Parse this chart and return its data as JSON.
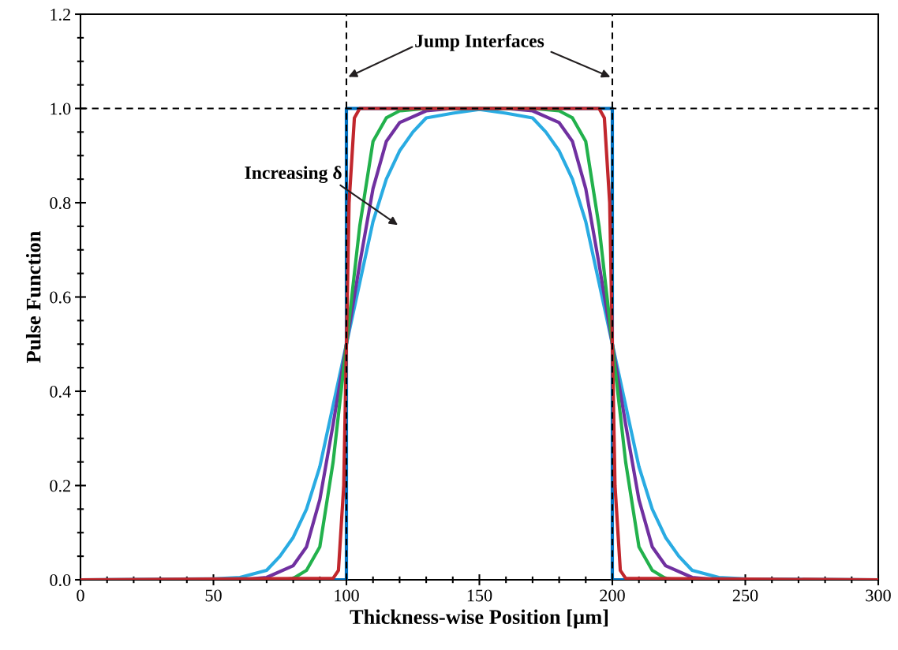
{
  "chart_data": {
    "type": "line",
    "xlabel": "Thickness-wise Position [µm]",
    "ylabel": "Pulse Function",
    "xlim": [
      0,
      300
    ],
    "xticks": [
      0,
      50,
      100,
      150,
      200,
      250,
      300
    ],
    "ylim": [
      0,
      1.2
    ],
    "yticks": [
      {
        "value": 0,
        "label": "0.0"
      },
      {
        "value": 0.2,
        "label": "0.2"
      },
      {
        "value": 0.4,
        "label": "0.4"
      },
      {
        "value": 0.6,
        "label": "0.6"
      },
      {
        "value": 0.8,
        "label": "0.8"
      },
      {
        "value": 1.0,
        "label": "1.0"
      },
      {
        "value": 1.2,
        "label": "1.2"
      }
    ],
    "grid": false,
    "marker": "none",
    "line_style": "solid",
    "series": [
      {
        "color": "#0070c0",
        "x": [
          0,
          100,
          100,
          200,
          200,
          300
        ],
        "values": [
          0,
          0,
          1,
          1,
          0,
          0
        ]
      },
      {
        "color": "#29abe2",
        "x": [
          0,
          50,
          60,
          70,
          75,
          80,
          85,
          90,
          95,
          100,
          105,
          110,
          115,
          120,
          125,
          130,
          140,
          150,
          160,
          170,
          175,
          180,
          185,
          190,
          195,
          200,
          205,
          210,
          215,
          220,
          225,
          230,
          240,
          250,
          300
        ],
        "values": [
          0,
          0.002,
          0.005,
          0.02,
          0.05,
          0.09,
          0.15,
          0.24,
          0.37,
          0.5,
          0.63,
          0.76,
          0.85,
          0.91,
          0.95,
          0.98,
          0.99,
          0.998,
          0.99,
          0.98,
          0.95,
          0.91,
          0.85,
          0.76,
          0.63,
          0.5,
          0.37,
          0.24,
          0.15,
          0.09,
          0.05,
          0.02,
          0.005,
          0.002,
          0
        ]
      },
      {
        "color": "#7030a0",
        "x": [
          0,
          60,
          70,
          80,
          85,
          90,
          95,
          100,
          105,
          110,
          115,
          120,
          130,
          140,
          160,
          170,
          180,
          185,
          190,
          195,
          200,
          205,
          210,
          215,
          220,
          230,
          240,
          300
        ],
        "values": [
          0,
          0,
          0.005,
          0.03,
          0.07,
          0.17,
          0.33,
          0.5,
          0.67,
          0.83,
          0.93,
          0.97,
          0.995,
          1,
          1,
          0.995,
          0.97,
          0.93,
          0.83,
          0.67,
          0.5,
          0.33,
          0.17,
          0.07,
          0.03,
          0.005,
          0,
          0
        ]
      },
      {
        "color": "#22b14c",
        "x": [
          0,
          75,
          80,
          85,
          90,
          95,
          100,
          105,
          110,
          115,
          120,
          130,
          170,
          180,
          185,
          190,
          195,
          200,
          205,
          210,
          215,
          220,
          225,
          300
        ],
        "values": [
          0,
          0,
          0.003,
          0.02,
          0.07,
          0.25,
          0.5,
          0.75,
          0.93,
          0.98,
          0.995,
          1,
          1,
          0.995,
          0.98,
          0.93,
          0.75,
          0.5,
          0.25,
          0.07,
          0.02,
          0.003,
          0,
          0
        ]
      },
      {
        "color": "#c1272d",
        "x": [
          0,
          95,
          97,
          99,
          100,
          101,
          103,
          105,
          195,
          197,
          199,
          200,
          201,
          203,
          205,
          300
        ],
        "values": [
          0,
          0.003,
          0.02,
          0.2,
          0.5,
          0.8,
          0.98,
          1,
          1,
          0.98,
          0.8,
          0.5,
          0.2,
          0.02,
          0.003,
          0
        ]
      }
    ],
    "ref_lines": [
      {
        "axis": "x",
        "value": 100,
        "color": "#000000",
        "line_style": "dashed"
      },
      {
        "axis": "x",
        "value": 200,
        "color": "#000000",
        "line_style": "dashed"
      },
      {
        "axis": "y",
        "value": 1.0,
        "color": "#000000",
        "line_style": "dashed"
      }
    ],
    "annotations": [
      "Jump Interfaces",
      "Increasing δ"
    ]
  }
}
